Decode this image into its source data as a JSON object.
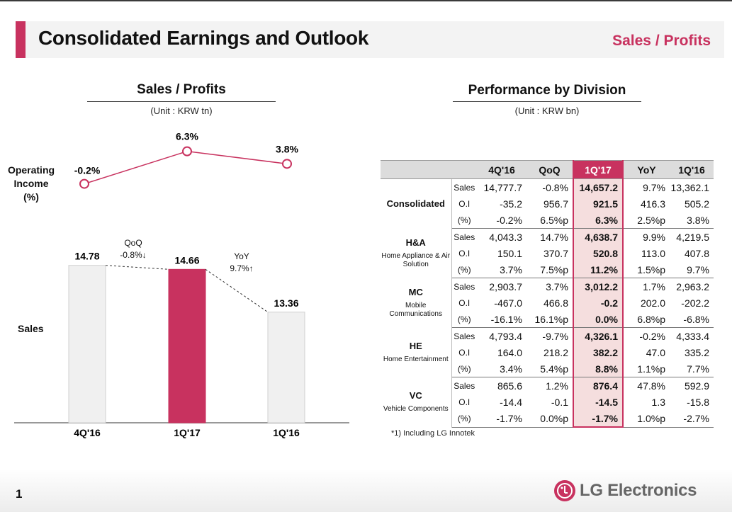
{
  "header": {
    "title": "Consolidated Earnings and Outlook",
    "subtitle": "Sales / Profits"
  },
  "left": {
    "title": "Sales / Profits",
    "unit": "(Unit : KRW tn)",
    "oi_label": [
      "Operating",
      "Income",
      "(%)"
    ],
    "sales_label": "Sales",
    "qoq": {
      "label": "QoQ",
      "value": "-0.8%↓"
    },
    "yoy": {
      "label": "YoY",
      "value": "9.7%↑"
    }
  },
  "right": {
    "title": "Performance by Division",
    "unit": "(Unit : KRW bn)",
    "columns": [
      "4Q'16",
      "QoQ",
      "1Q'17",
      "YoY",
      "1Q'16"
    ],
    "divisions": [
      {
        "name": "Consolidated",
        "sub": "",
        "rows": [
          {
            "metric": "Sales",
            "values": [
              "14,777.7",
              "-0.8%",
              "14,657.2",
              "9.7%",
              "13,362.1"
            ]
          },
          {
            "metric": "O.I",
            "values": [
              "-35.2",
              "956.7",
              "921.5",
              "416.3",
              "505.2"
            ]
          },
          {
            "metric": "(%)",
            "values": [
              "-0.2%",
              "6.5%p",
              "6.3%",
              "2.5%p",
              "3.8%"
            ]
          }
        ]
      },
      {
        "name": "H&A",
        "sub": "Home Appliance & Air Solution",
        "rows": [
          {
            "metric": "Sales",
            "values": [
              "4,043.3",
              "14.7%",
              "4,638.7",
              "9.9%",
              "4,219.5"
            ]
          },
          {
            "metric": "O.I",
            "values": [
              "150.1",
              "370.7",
              "520.8",
              "113.0",
              "407.8"
            ]
          },
          {
            "metric": "(%)",
            "values": [
              "3.7%",
              "7.5%p",
              "11.2%",
              "1.5%p",
              "9.7%"
            ]
          }
        ]
      },
      {
        "name": "MC",
        "sub": "Mobile Communications",
        "rows": [
          {
            "metric": "Sales",
            "values": [
              "2,903.7",
              "3.7%",
              "3,012.2",
              "1.7%",
              "2,963.2"
            ]
          },
          {
            "metric": "O.I",
            "values": [
              "-467.0",
              "466.8",
              "-0.2",
              "202.0",
              "-202.2"
            ]
          },
          {
            "metric": "(%)",
            "values": [
              "-16.1%",
              "16.1%p",
              "0.0%",
              "6.8%p",
              "-6.8%"
            ]
          }
        ]
      },
      {
        "name": "HE",
        "sub": "Home Entertainment",
        "rows": [
          {
            "metric": "Sales",
            "values": [
              "4,793.4",
              "-9.7%",
              "4,326.1",
              "-0.2%",
              "4,333.4"
            ]
          },
          {
            "metric": "O.I",
            "values": [
              "164.0",
              "218.2",
              "382.2",
              "47.0",
              "335.2"
            ]
          },
          {
            "metric": "(%)",
            "values": [
              "3.4%",
              "5.4%p",
              "8.8%",
              "1.1%p",
              "7.7%"
            ]
          }
        ]
      },
      {
        "name": "VC",
        "sub": "Vehicle Components",
        "rows": [
          {
            "metric": "Sales",
            "values": [
              "865.6",
              "1.2%",
              "876.4",
              "47.8%",
              "592.9"
            ]
          },
          {
            "metric": "O.I",
            "values": [
              "-14.4",
              "-0.1",
              "-14.5",
              "1.3",
              "-15.8"
            ]
          },
          {
            "metric": "(%)",
            "values": [
              "-1.7%",
              "0.0%p",
              "-1.7%",
              "1.0%p",
              "-2.7%"
            ]
          }
        ]
      }
    ],
    "footnote": "*1) Including LG Innotek"
  },
  "footer": {
    "page": "1",
    "logo_text": "LG Electronics"
  },
  "chart_data": [
    {
      "type": "line",
      "categories": [
        "4Q'16",
        "1Q'17",
        "1Q'16"
      ],
      "values": [
        -0.2,
        6.3,
        3.8
      ],
      "labels": [
        "-0.2%",
        "6.3%",
        "3.8%"
      ],
      "ylabel": "Operating Income (%)",
      "color": "#c8325f"
    },
    {
      "type": "bar",
      "categories": [
        "4Q'16",
        "1Q'17",
        "1Q'16"
      ],
      "values": [
        14.78,
        14.66,
        13.36
      ],
      "labels": [
        "14.78",
        "14.66",
        "13.36"
      ],
      "ylabel": "Sales",
      "colors": [
        "#f0f0f0",
        "#c8325f",
        "#f0f0f0"
      ],
      "highlight": "1Q'17"
    }
  ]
}
